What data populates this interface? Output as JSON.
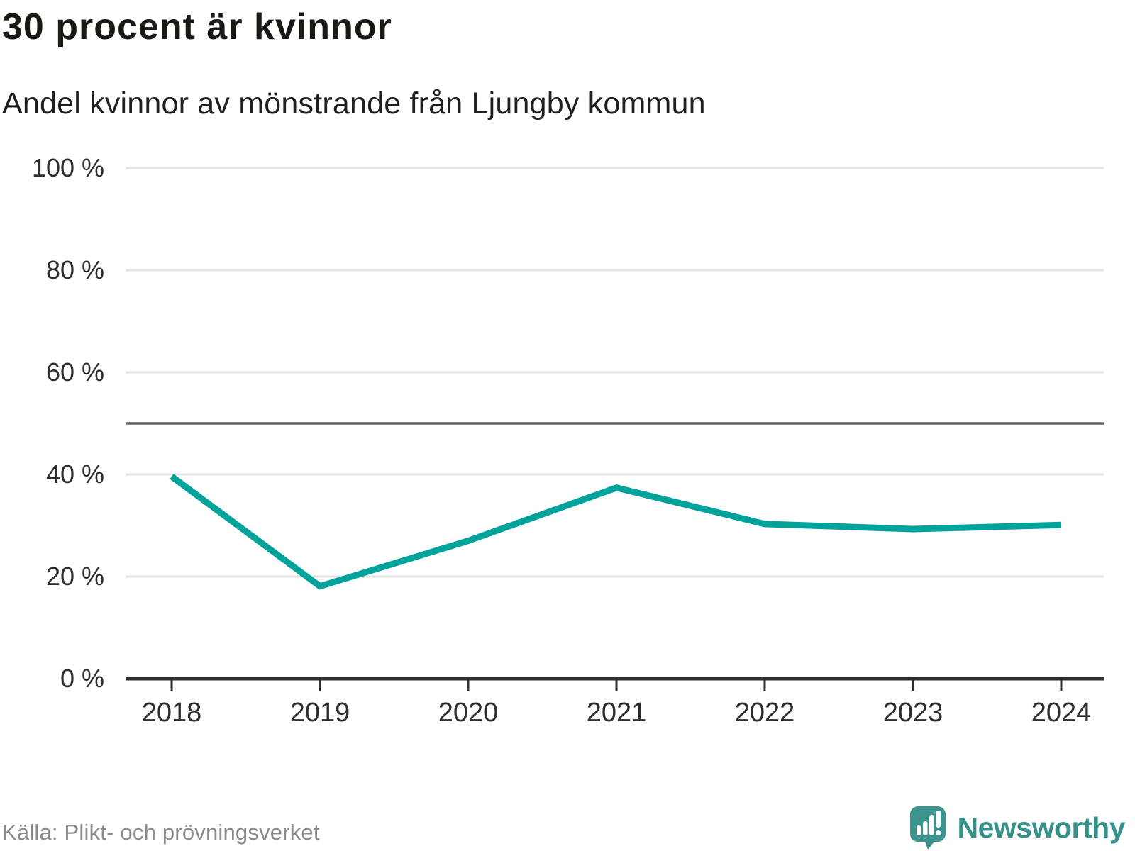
{
  "header": {
    "title": "30 procent är kvinnor",
    "subtitle": "Andel kvinnor av mönstrande från Ljungby kommun"
  },
  "footer": {
    "source": "Källa: Plikt- och prövningsverket",
    "brand": "Newsworthy"
  },
  "colors": {
    "line": "#00a39b",
    "grid": "#e2e2e2",
    "axis": "#2f2f2f",
    "reference": "#636363",
    "brand_teal": "#3a948d"
  },
  "chart_data": {
    "type": "line",
    "title": "30 procent är kvinnor",
    "subtitle": "Andel kvinnor av mönstrande från Ljungby kommun",
    "categories": [
      2018,
      2019,
      2020,
      2021,
      2022,
      2023,
      2024
    ],
    "series": [
      {
        "name": "Andel kvinnor av mönstrande",
        "values": [
          39.6,
          18.1,
          27.0,
          37.4,
          30.3,
          29.3,
          30.1
        ]
      }
    ],
    "xlabel": "",
    "ylabel": "",
    "ylim": [
      0,
      100
    ],
    "y_ticks": [
      0,
      20,
      40,
      60,
      80,
      100
    ],
    "y_tick_labels": [
      "0 %",
      "20 %",
      "40 %",
      "60 %",
      "80 %",
      "100 %"
    ],
    "reference_line": 50,
    "grid": "horizontal",
    "legend": "none",
    "line_color": "#00a39b"
  }
}
